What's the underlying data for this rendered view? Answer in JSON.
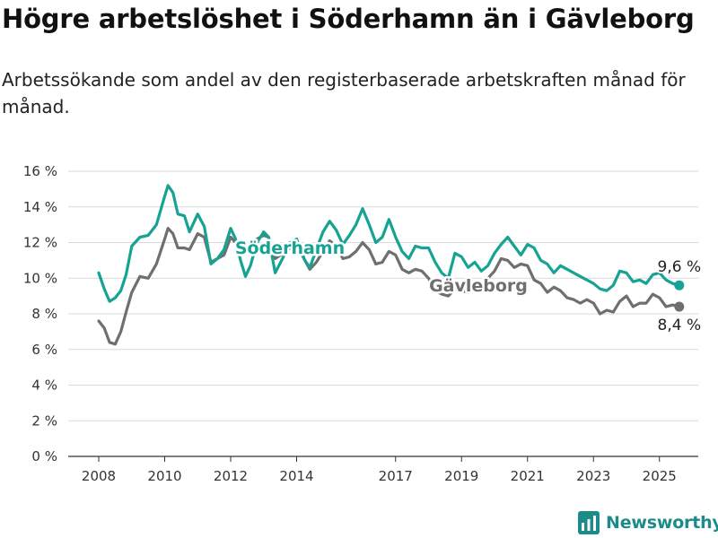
{
  "title": "Högre arbetslöshet i Söderhamn än i Gävleborg",
  "subtitle": "Arbetssökande som andel av den registerbaserade arbetskraften månad för månad.",
  "brand": {
    "name": "Newsworthy",
    "logo_icon": "newsworthy-chart-logo-icon",
    "color": "#1d8b8a"
  },
  "chart_data": {
    "type": "line",
    "x_range": [
      2008,
      2025.75
    ],
    "ylim": [
      0,
      16
    ],
    "yticks": [
      0,
      2,
      4,
      6,
      8,
      10,
      12,
      14,
      16
    ],
    "ytick_labels": [
      "0 %",
      "2 %",
      "4 %",
      "6 %",
      "8 %",
      "10 %",
      "12 %",
      "14 %",
      "16 %"
    ],
    "xticks": [
      2008,
      2010,
      2012,
      2014,
      2017,
      2019,
      2021,
      2023,
      2025
    ],
    "xtick_labels": [
      "2008",
      "2010",
      "2012",
      "2014",
      "2017",
      "2019",
      "2021",
      "2023",
      "2025"
    ],
    "grid": "horizontal",
    "series": [
      {
        "name": "Söderhamn",
        "color": "#16a394",
        "end_label": "9,6 %",
        "points": [
          [
            2008.0,
            10.3
          ],
          [
            2008.17,
            9.4
          ],
          [
            2008.33,
            8.7
          ],
          [
            2008.5,
            8.9
          ],
          [
            2008.67,
            9.3
          ],
          [
            2008.83,
            10.2
          ],
          [
            2009.0,
            11.8
          ],
          [
            2009.25,
            12.3
          ],
          [
            2009.5,
            12.4
          ],
          [
            2009.75,
            13.0
          ],
          [
            2010.0,
            14.6
          ],
          [
            2010.1,
            15.2
          ],
          [
            2010.25,
            14.8
          ],
          [
            2010.4,
            13.6
          ],
          [
            2010.6,
            13.5
          ],
          [
            2010.75,
            12.6
          ],
          [
            2011.0,
            13.6
          ],
          [
            2011.2,
            12.9
          ],
          [
            2011.4,
            10.8
          ],
          [
            2011.6,
            11.1
          ],
          [
            2011.8,
            11.6
          ],
          [
            2012.0,
            12.8
          ],
          [
            2012.15,
            12.2
          ],
          [
            2012.3,
            11.0
          ],
          [
            2012.45,
            10.1
          ],
          [
            2012.6,
            10.7
          ],
          [
            2012.8,
            12.0
          ],
          [
            2013.0,
            12.6
          ],
          [
            2013.15,
            12.3
          ],
          [
            2013.35,
            10.3
          ],
          [
            2013.6,
            11.2
          ],
          [
            2013.8,
            12.0
          ],
          [
            2014.0,
            12.2
          ],
          [
            2014.25,
            11.0
          ],
          [
            2014.4,
            10.6
          ],
          [
            2014.6,
            11.6
          ],
          [
            2014.8,
            12.6
          ],
          [
            2015.0,
            13.2
          ],
          [
            2015.2,
            12.7
          ],
          [
            2015.4,
            11.9
          ],
          [
            2015.6,
            12.4
          ],
          [
            2015.8,
            13.0
          ],
          [
            2016.0,
            13.9
          ],
          [
            2016.2,
            13.0
          ],
          [
            2016.4,
            12.0
          ],
          [
            2016.6,
            12.3
          ],
          [
            2016.8,
            13.3
          ],
          [
            2017.0,
            12.3
          ],
          [
            2017.2,
            11.5
          ],
          [
            2017.4,
            11.1
          ],
          [
            2017.6,
            11.8
          ],
          [
            2017.8,
            11.7
          ],
          [
            2018.0,
            11.7
          ],
          [
            2018.2,
            10.9
          ],
          [
            2018.4,
            10.3
          ],
          [
            2018.6,
            10.0
          ],
          [
            2018.8,
            11.4
          ],
          [
            2019.0,
            11.2
          ],
          [
            2019.2,
            10.6
          ],
          [
            2019.4,
            10.9
          ],
          [
            2019.6,
            10.4
          ],
          [
            2019.8,
            10.7
          ],
          [
            2020.0,
            11.4
          ],
          [
            2020.2,
            11.9
          ],
          [
            2020.4,
            12.3
          ],
          [
            2020.6,
            11.8
          ],
          [
            2020.8,
            11.3
          ],
          [
            2021.0,
            11.9
          ],
          [
            2021.2,
            11.7
          ],
          [
            2021.4,
            11.0
          ],
          [
            2021.6,
            10.8
          ],
          [
            2021.8,
            10.3
          ],
          [
            2022.0,
            10.7
          ],
          [
            2022.2,
            10.5
          ],
          [
            2022.4,
            10.3
          ],
          [
            2022.6,
            10.1
          ],
          [
            2022.8,
            9.9
          ],
          [
            2023.0,
            9.7
          ],
          [
            2023.2,
            9.4
          ],
          [
            2023.4,
            9.3
          ],
          [
            2023.6,
            9.6
          ],
          [
            2023.8,
            10.4
          ],
          [
            2024.0,
            10.3
          ],
          [
            2024.2,
            9.8
          ],
          [
            2024.4,
            9.9
          ],
          [
            2024.6,
            9.7
          ],
          [
            2024.8,
            10.2
          ],
          [
            2025.0,
            10.3
          ],
          [
            2025.2,
            9.9
          ],
          [
            2025.4,
            9.7
          ],
          [
            2025.6,
            9.6
          ]
        ]
      },
      {
        "name": "Gävleborg",
        "color": "#6f6f6f",
        "end_label": "8,4 %",
        "points": [
          [
            2008.0,
            7.6
          ],
          [
            2008.17,
            7.2
          ],
          [
            2008.33,
            6.4
          ],
          [
            2008.5,
            6.3
          ],
          [
            2008.67,
            7.0
          ],
          [
            2008.83,
            8.1
          ],
          [
            2009.0,
            9.2
          ],
          [
            2009.25,
            10.1
          ],
          [
            2009.5,
            10.0
          ],
          [
            2009.75,
            10.8
          ],
          [
            2010.0,
            12.2
          ],
          [
            2010.1,
            12.8
          ],
          [
            2010.25,
            12.5
          ],
          [
            2010.4,
            11.7
          ],
          [
            2010.6,
            11.7
          ],
          [
            2010.75,
            11.6
          ],
          [
            2011.0,
            12.5
          ],
          [
            2011.2,
            12.3
          ],
          [
            2011.4,
            10.9
          ],
          [
            2011.6,
            11.1
          ],
          [
            2011.8,
            11.3
          ],
          [
            2012.0,
            12.3
          ],
          [
            2012.15,
            12.0
          ],
          [
            2012.3,
            11.5
          ],
          [
            2012.45,
            11.4
          ],
          [
            2012.6,
            11.8
          ],
          [
            2012.8,
            12.2
          ],
          [
            2013.0,
            12.4
          ],
          [
            2013.15,
            12.3
          ],
          [
            2013.35,
            11.1
          ],
          [
            2013.6,
            11.4
          ],
          [
            2013.8,
            11.7
          ],
          [
            2014.0,
            11.9
          ],
          [
            2014.25,
            11.0
          ],
          [
            2014.4,
            10.5
          ],
          [
            2014.6,
            10.9
          ],
          [
            2014.8,
            11.5
          ],
          [
            2015.0,
            12.1
          ],
          [
            2015.2,
            11.8
          ],
          [
            2015.4,
            11.1
          ],
          [
            2015.6,
            11.2
          ],
          [
            2015.8,
            11.5
          ],
          [
            2016.0,
            12.0
          ],
          [
            2016.2,
            11.6
          ],
          [
            2016.4,
            10.8
          ],
          [
            2016.6,
            10.9
          ],
          [
            2016.8,
            11.5
          ],
          [
            2017.0,
            11.3
          ],
          [
            2017.2,
            10.5
          ],
          [
            2017.4,
            10.3
          ],
          [
            2017.6,
            10.5
          ],
          [
            2017.8,
            10.4
          ],
          [
            2018.0,
            10.0
          ],
          [
            2018.2,
            9.3
          ],
          [
            2018.4,
            9.1
          ],
          [
            2018.6,
            9.0
          ],
          [
            2018.8,
            9.4
          ],
          [
            2019.0,
            9.3
          ],
          [
            2019.2,
            9.2
          ],
          [
            2019.4,
            9.5
          ],
          [
            2019.6,
            9.6
          ],
          [
            2019.8,
            10.0
          ],
          [
            2020.0,
            10.4
          ],
          [
            2020.2,
            11.1
          ],
          [
            2020.4,
            11.0
          ],
          [
            2020.6,
            10.6
          ],
          [
            2020.8,
            10.8
          ],
          [
            2021.0,
            10.7
          ],
          [
            2021.2,
            9.9
          ],
          [
            2021.4,
            9.7
          ],
          [
            2021.6,
            9.2
          ],
          [
            2021.8,
            9.5
          ],
          [
            2022.0,
            9.3
          ],
          [
            2022.2,
            8.9
          ],
          [
            2022.4,
            8.8
          ],
          [
            2022.6,
            8.6
          ],
          [
            2022.8,
            8.8
          ],
          [
            2023.0,
            8.6
          ],
          [
            2023.2,
            8.0
          ],
          [
            2023.4,
            8.2
          ],
          [
            2023.6,
            8.1
          ],
          [
            2023.8,
            8.7
          ],
          [
            2024.0,
            9.0
          ],
          [
            2024.2,
            8.4
          ],
          [
            2024.4,
            8.6
          ],
          [
            2024.6,
            8.6
          ],
          [
            2024.8,
            9.1
          ],
          [
            2025.0,
            8.9
          ],
          [
            2025.2,
            8.4
          ],
          [
            2025.4,
            8.5
          ],
          [
            2025.6,
            8.4
          ]
        ]
      }
    ]
  }
}
